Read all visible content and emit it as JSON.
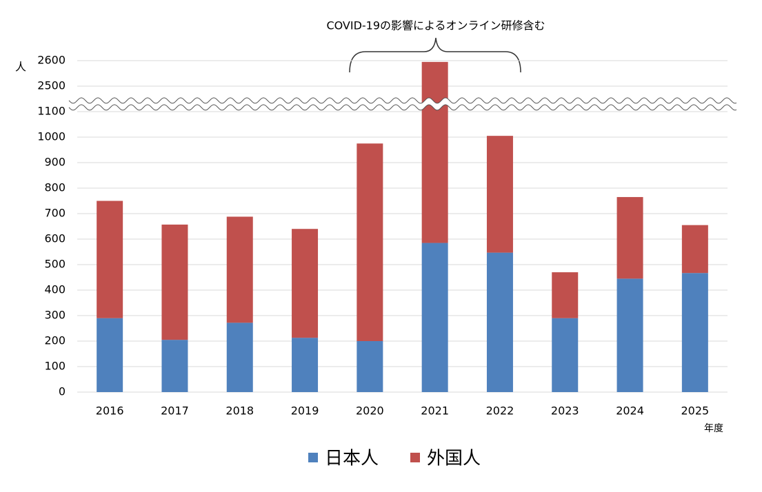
{
  "chart_data": {
    "type": "stacked-bar",
    "annotation": "COVID-19の影響によるオンライン研修含む",
    "y_label": "人",
    "x_label": "年度",
    "categories": [
      "2016",
      "2017",
      "2018",
      "2019",
      "2020",
      "2021",
      "2022",
      "2023",
      "2024",
      "2025"
    ],
    "series": [
      {
        "name": "日本人",
        "color": "#4f81bd",
        "values": [
          290,
          205,
          272,
          213,
          200,
          585,
          547,
          290,
          445,
          467
        ]
      },
      {
        "name": "外国人",
        "color": "#c0504d",
        "values": [
          460,
          452,
          416,
          427,
          775,
          2010,
          458,
          180,
          320,
          188
        ]
      }
    ],
    "ylim": [
      0,
      2600
    ],
    "axis_break": [
      1130,
      2430
    ],
    "yticks": [
      0,
      100,
      200,
      300,
      400,
      500,
      600,
      700,
      800,
      900,
      1000,
      1100,
      2500,
      2600
    ],
    "grid": true
  }
}
